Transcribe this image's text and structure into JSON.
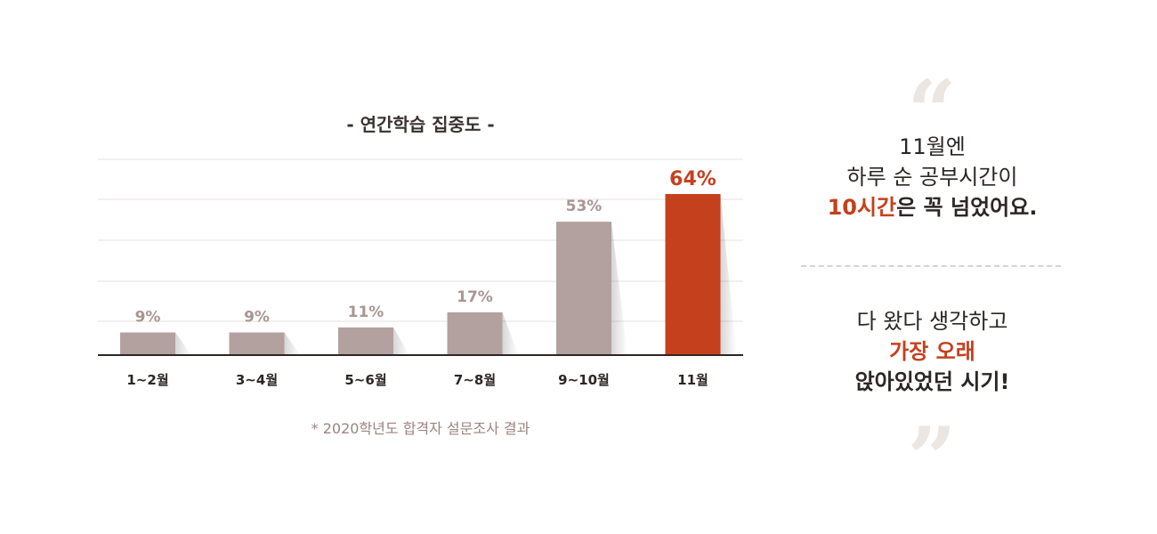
{
  "chart_data": {
    "type": "bar",
    "title": "- 연간학습 집중도 -",
    "categories": [
      "1~2월",
      "3~4월",
      "5~6월",
      "7~8월",
      "9~10월",
      "11월"
    ],
    "values": [
      9,
      9,
      11,
      17,
      53,
      64
    ],
    "value_labels": [
      "9%",
      "9%",
      "11%",
      "17%",
      "53%",
      "64%"
    ],
    "highlight_index": 5,
    "colors": {
      "bar": "#b3a19f",
      "highlight": "#c5401d",
      "label": "#a89694"
    },
    "grid": true,
    "note": "* 2020학년도 합격자 설문조사 결과"
  },
  "quote": {
    "open_mark": "“",
    "close_mark": "”",
    "block1": {
      "line1": "11월엔",
      "line2": "하루 순 공부시간이",
      "line3_accent": "10시간",
      "line3_rest": "은 꼭 넘었어요."
    },
    "block2": {
      "line1": "다 왔다 생각하고",
      "line2_accent": "가장 오래",
      "line3": "앉아있었던 시기!"
    }
  }
}
